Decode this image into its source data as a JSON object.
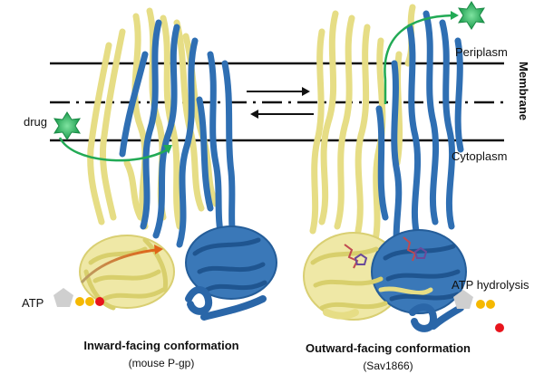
{
  "labels": {
    "periplasm": "Periplasm",
    "membrane": "Membrane",
    "cytoplasm": "Cytoplasm",
    "drug": "drug",
    "atp": "ATP",
    "atp_hydrolysis": "ATP hydrolysis"
  },
  "captions": {
    "inward_title": "Inward-facing conformation",
    "inward_sub": "(mouse P-gp)",
    "outward_title": "Outward-facing conformation",
    "outward_sub": "(Sav1866)"
  },
  "colors": {
    "yellow_helix": "#e8e08a",
    "blue_helix": "#2e6db0",
    "drug_star": "#2fb865",
    "arrow_green": "#22aa55",
    "arrow_orange": "#e0701a",
    "atp_pentagon": "#cfcfcf",
    "phosphate_yellow": "#f5b800",
    "phosphate_red": "#e8141c",
    "line": "#111111"
  },
  "icons": {
    "drug": "green-star-icon",
    "atp_sugar": "pentagon-icon",
    "phosphate": "circle-icon",
    "equilibrium": "double-arrow-icon"
  }
}
